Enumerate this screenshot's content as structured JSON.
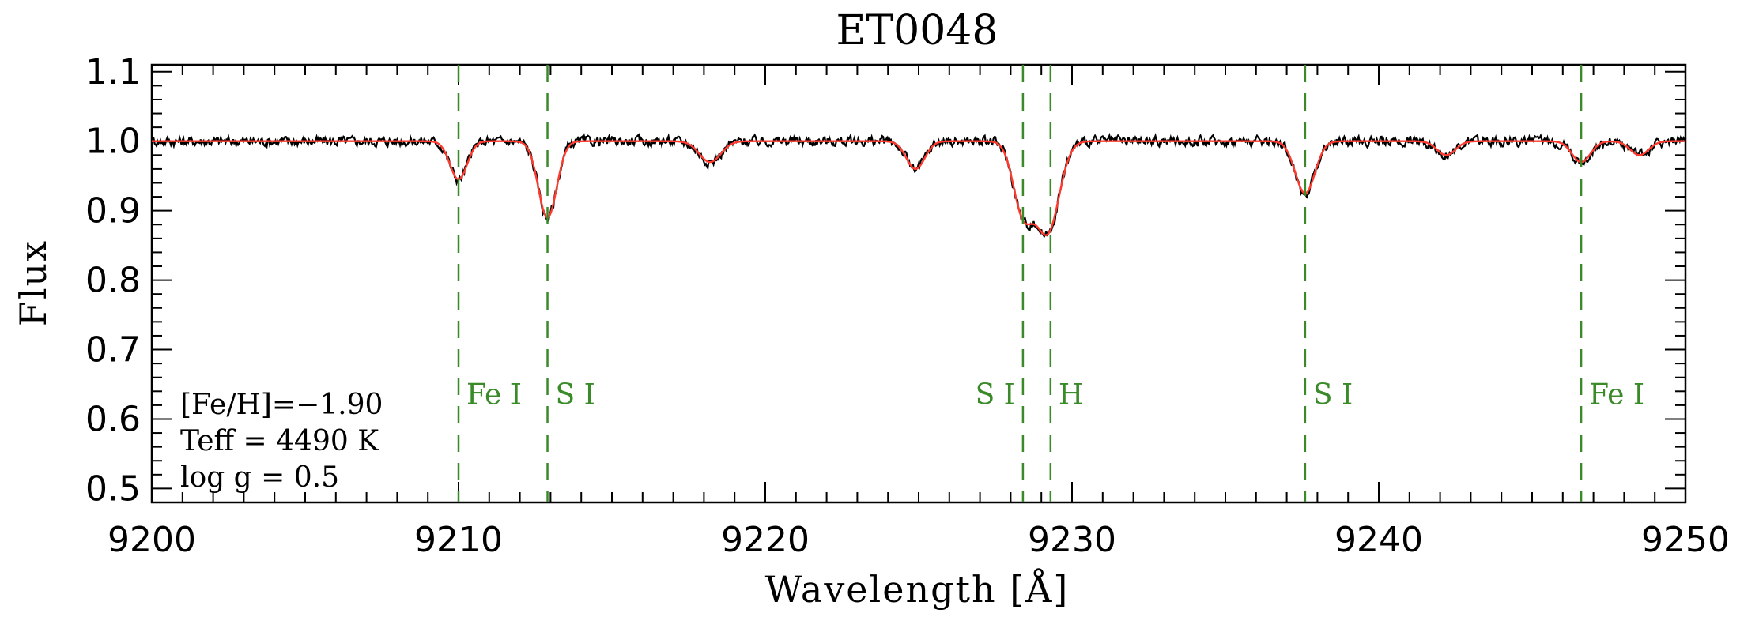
{
  "chart_data": {
    "type": "line",
    "title": "ET0048",
    "xlabel": "Wavelength [Å]",
    "ylabel": "Flux",
    "xlim": [
      9200,
      9250
    ],
    "ylim": [
      0.48,
      1.11
    ],
    "xticks": [
      9200,
      9210,
      9220,
      9230,
      9240,
      9250
    ],
    "xtick_labels": [
      "9200",
      "9210",
      "9220",
      "9230",
      "9240",
      "9250"
    ],
    "yticks": [
      0.5,
      0.6,
      0.7,
      0.8,
      0.9,
      1.0,
      1.1
    ],
    "ytick_labels": [
      "0.5",
      "0.6",
      "0.7",
      "0.8",
      "0.9",
      "1.0",
      "1.1"
    ],
    "grid": false,
    "continuum": 1.0,
    "absorption_lines": [
      {
        "center": 9210.0,
        "depth": 0.055,
        "width": 0.28
      },
      {
        "center": 9212.9,
        "depth": 0.11,
        "width": 0.3
      },
      {
        "center": 9218.2,
        "depth": 0.03,
        "width": 0.35
      },
      {
        "center": 9224.9,
        "depth": 0.04,
        "width": 0.3
      },
      {
        "center": 9228.4,
        "depth": 0.1,
        "width": 0.32
      },
      {
        "center": 9229.2,
        "depth": 0.13,
        "width": 0.38
      },
      {
        "center": 9237.6,
        "depth": 0.075,
        "width": 0.32
      },
      {
        "center": 9242.2,
        "depth": 0.02,
        "width": 0.3
      },
      {
        "center": 9246.6,
        "depth": 0.03,
        "width": 0.3
      },
      {
        "center": 9248.5,
        "depth": 0.02,
        "width": 0.3
      }
    ],
    "noise_amplitude": 0.011,
    "series": [
      {
        "role": "observed",
        "color": "#000000"
      },
      {
        "role": "synthetic fit",
        "color": "#ff3b2f"
      }
    ],
    "line_markers": [
      {
        "x": 9210.0,
        "label": "Fe I",
        "label_side": "right"
      },
      {
        "x": 9212.9,
        "label": "S I",
        "label_side": "right"
      },
      {
        "x": 9228.4,
        "label": "S I",
        "label_side": "left"
      },
      {
        "x": 9229.3,
        "label": "H",
        "label_side": "right"
      },
      {
        "x": 9237.6,
        "label": "S I",
        "label_side": "right"
      },
      {
        "x": 9246.6,
        "label": "Fe I",
        "label_side": "right"
      }
    ],
    "marker_color": "#3a8a2a",
    "marker_label_y": 0.635,
    "annotations": [
      "[Fe/H]=−1.90",
      "Teff = 4490 K",
      "log g = 0.5"
    ]
  }
}
